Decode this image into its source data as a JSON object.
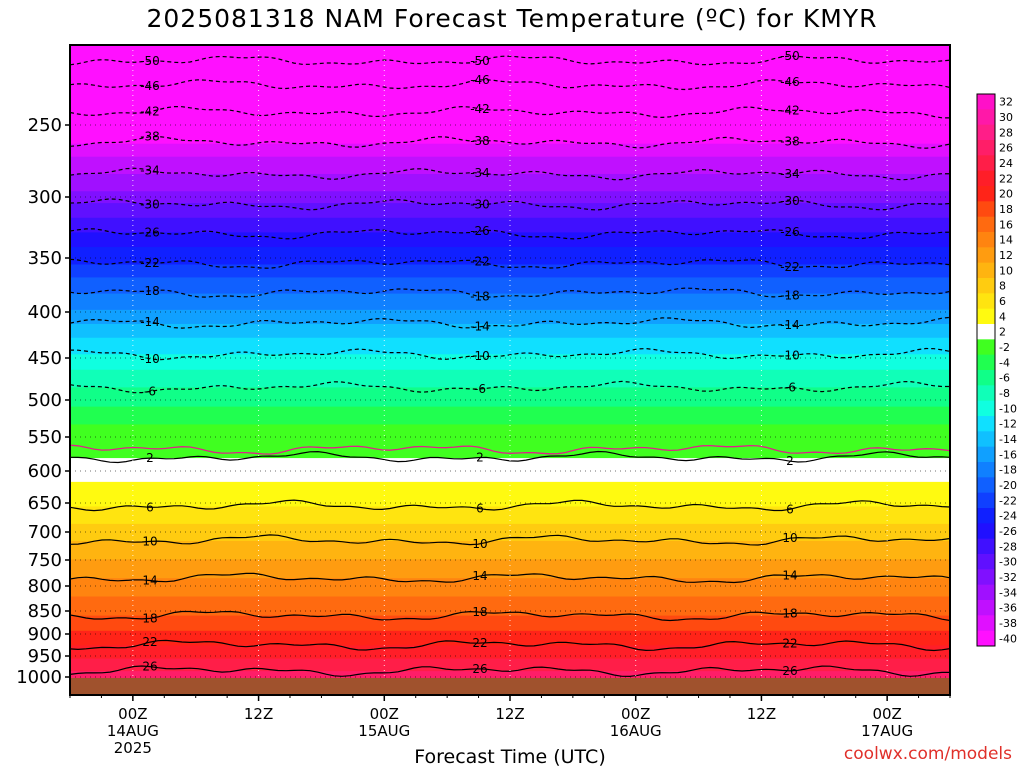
{
  "title": "2025081318 NAM Forecast Temperature (ºC) for KMYR",
  "credit": "coolwx.com/models",
  "chart_data": {
    "type": "heatmap",
    "title": "2025081318 NAM Forecast Temperature (ºC) for KMYR",
    "xlabel": "Forecast Time (UTC)",
    "ylabel": "",
    "y_ticks": [
      250,
      300,
      350,
      400,
      450,
      500,
      550,
      600,
      650,
      700,
      750,
      800,
      850,
      900,
      950,
      1000
    ],
    "y_range": [
      1000,
      200
    ],
    "x_ticks": [
      {
        "hour": 6,
        "lines": [
          "00Z",
          "14AUG",
          "2025"
        ]
      },
      {
        "hour": 18,
        "lines": [
          "12Z"
        ]
      },
      {
        "hour": 30,
        "lines": [
          "00Z",
          "15AUG"
        ]
      },
      {
        "hour": 42,
        "lines": [
          "12Z"
        ]
      },
      {
        "hour": 54,
        "lines": [
          "00Z",
          "16AUG"
        ]
      },
      {
        "hour": 66,
        "lines": [
          "12Z"
        ]
      },
      {
        "hour": 78,
        "lines": [
          "00Z",
          "17AUG"
        ]
      }
    ],
    "x_range": [
      0,
      84
    ],
    "colorbar_levels": [
      32,
      30,
      28,
      26,
      24,
      22,
      20,
      18,
      16,
      14,
      12,
      10,
      8,
      6,
      4,
      2,
      -2,
      -4,
      -6,
      -8,
      -10,
      -12,
      -14,
      -16,
      -18,
      -20,
      -22,
      -24,
      -26,
      -28,
      -30,
      -32,
      -34,
      -36,
      -38,
      -40
    ],
    "colorbar_colors": [
      "#ff10c8",
      "#ff18a8",
      "#ff1e88",
      "#ff1e68",
      "#ff1e48",
      "#ff1e28",
      "#ff2418",
      "#ff4a10",
      "#ff6a10",
      "#ff8410",
      "#ff9c10",
      "#ffb410",
      "#ffcc10",
      "#ffe410",
      "#fffa10",
      "#ffffff",
      "#40ff20",
      "#20ff50",
      "#10ff88",
      "#10ffb8",
      "#10ffe0",
      "#10e0ff",
      "#10c0ff",
      "#10a0ff",
      "#1080ff",
      "#1060ff",
      "#1040ff",
      "#1020ff",
      "#2010ff",
      "#4010ff",
      "#6010ff",
      "#8010ff",
      "#a010ff",
      "#c010ff",
      "#e010ff",
      "#ff10ff"
    ],
    "contours": [
      {
        "level": -50,
        "pressure": 210
      },
      {
        "level": -46,
        "pressure": 225
      },
      {
        "level": -42,
        "pressure": 242
      },
      {
        "level": -38,
        "pressure": 262
      },
      {
        "level": -34,
        "pressure": 284
      },
      {
        "level": -30,
        "pressure": 306
      },
      {
        "level": -26,
        "pressure": 330
      },
      {
        "level": -22,
        "pressure": 355
      },
      {
        "level": -18,
        "pressure": 382
      },
      {
        "level": -14,
        "pressure": 412
      },
      {
        "level": -10,
        "pressure": 446
      },
      {
        "level": -6,
        "pressure": 485
      },
      {
        "level": 2,
        "pressure": 580
      },
      {
        "level": 6,
        "pressure": 655
      },
      {
        "level": 10,
        "pressure": 715
      },
      {
        "level": 14,
        "pressure": 785
      },
      {
        "level": 18,
        "pressure": 860
      },
      {
        "level": 22,
        "pressure": 925
      },
      {
        "level": 26,
        "pressure": 985
      }
    ],
    "grid": true
  }
}
